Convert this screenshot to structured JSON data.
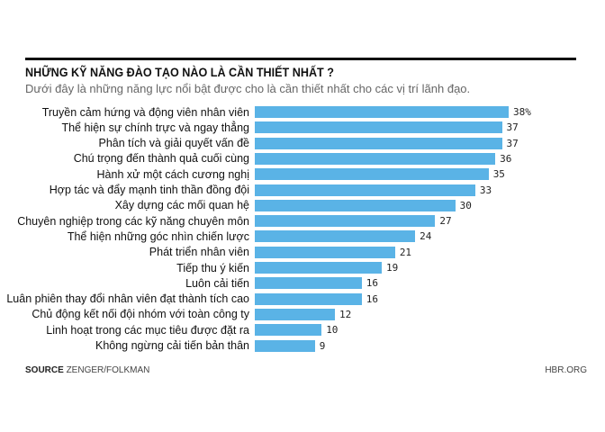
{
  "chart_data": {
    "type": "bar",
    "orientation": "horizontal",
    "title": "NHỮNG KỸ NĂNG ĐÀO TẠO NÀO LÀ CẦN THIẾT NHẤT ?",
    "subtitle": "Dưới đây là những năng lực nổi bật được cho là cần thiết nhất cho các vị trí lãnh đạo.",
    "categories": [
      "Truyền cảm hứng và động viên nhân viên",
      "Thể hiện sự chính trực và ngay thẳng",
      "Phân tích và giải quyết vấn đề",
      "Chú trọng đến thành quả cuối cùng",
      "Hành xử một cách cương nghị",
      "Hợp tác và đẩy mạnh tinh thần đồng đội",
      "Xây dựng các mối quan hệ",
      "Chuyên nghiệp trong các kỹ năng chuyên môn",
      "Thể hiện những góc nhìn chiến lược",
      "Phát triển nhân viên",
      "Tiếp thu ý kiến",
      "Luôn cải tiến",
      "Luân phiên thay đổi nhân viên đạt thành tích cao",
      "Chủ động kết nối đội nhóm với toàn công ty",
      "Linh hoạt trong các mục tiêu được đặt ra",
      "Không ngừng cải tiến bản thân"
    ],
    "values": [
      38,
      37,
      37,
      36,
      35,
      33,
      30,
      27,
      24,
      21,
      19,
      16,
      16,
      12,
      10,
      9
    ],
    "value_labels": [
      "38%",
      "37",
      "37",
      "36",
      "35",
      "33",
      "30",
      "27",
      "24",
      "21",
      "19",
      "16",
      "16",
      "12",
      "10",
      "9"
    ],
    "bar_color": "#5ab3e6",
    "grid": false
  },
  "footer": {
    "source_label": "SOURCE",
    "source": "ZENGER/FOLKMAN",
    "site": "HBR.ORG"
  }
}
